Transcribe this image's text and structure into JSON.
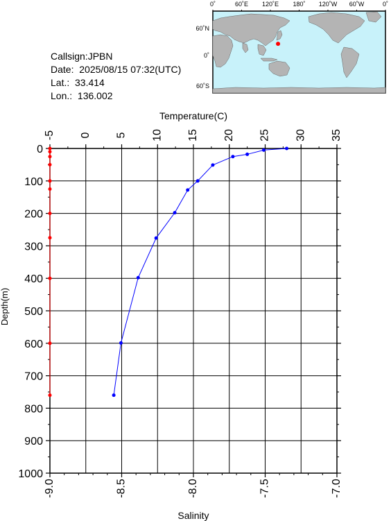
{
  "station": {
    "callsign": "Callsign:JPBN",
    "date": "Date:  2025/08/15 07:32(UTC)",
    "lat": "Lat.:  33.414",
    "lon": "Lon.:  136.002"
  },
  "map": {
    "lon_labels": [
      "0˚",
      "60˚E",
      "120˚E",
      "180˚",
      "120˚W",
      "60˚W",
      "0˚"
    ],
    "lat_labels": [
      "60˚N",
      "0˚",
      "60˚S"
    ],
    "ocean_color": "#c8f2fa",
    "land_color": "#b4b4b4",
    "marker_color": "#ff0000",
    "marker": {
      "lon": 136.002,
      "lat": 33.414
    }
  },
  "chart_data": {
    "type": "line",
    "top_axis_label": "Temperature(C)",
    "bottom_axis_label": "Salinity",
    "ylabel": "Depth(m)",
    "temp_ticks": [
      "-5",
      "0",
      "5",
      "10",
      "15",
      "20",
      "25",
      "30",
      "35"
    ],
    "sal_ticks": [
      "-9.0",
      "-8.5",
      "-8.0",
      "-7.5",
      "-7.0"
    ],
    "depth_ticks": [
      "0",
      "100",
      "200",
      "300",
      "400",
      "500",
      "600",
      "700",
      "800",
      "900",
      "1000"
    ],
    "temp_range": [
      -5,
      35
    ],
    "sal_range": [
      -9.0,
      -7.0
    ],
    "depth_range": [
      0,
      1000
    ],
    "grid": true,
    "series": [
      {
        "color": "#0000ff",
        "axis": "temperature",
        "points": [
          {
            "x": 28.0,
            "y": 0
          },
          {
            "x": 24.8,
            "y": 5
          },
          {
            "x": 22.5,
            "y": 18
          },
          {
            "x": 20.5,
            "y": 25
          },
          {
            "x": 17.7,
            "y": 51
          },
          {
            "x": 15.6,
            "y": 100
          },
          {
            "x": 14.2,
            "y": 128
          },
          {
            "x": 12.4,
            "y": 198
          },
          {
            "x": 9.8,
            "y": 276
          },
          {
            "x": 7.3,
            "y": 398
          },
          {
            "x": 4.9,
            "y": 599
          },
          {
            "x": 3.9,
            "y": 760
          }
        ]
      },
      {
        "color": "#ff0000",
        "axis": "salinity",
        "points": [
          {
            "x": -9.0,
            "y": 0
          },
          {
            "x": -9.0,
            "y": 10
          },
          {
            "x": -9.0,
            "y": 25
          },
          {
            "x": -9.0,
            "y": 50
          },
          {
            "x": -9.0,
            "y": 100
          },
          {
            "x": -9.0,
            "y": 125
          },
          {
            "x": -9.0,
            "y": 200
          },
          {
            "x": -9.0,
            "y": 275
          },
          {
            "x": -9.0,
            "y": 400
          },
          {
            "x": -9.0,
            "y": 600
          },
          {
            "x": -9.0,
            "y": 760
          }
        ]
      }
    ]
  }
}
